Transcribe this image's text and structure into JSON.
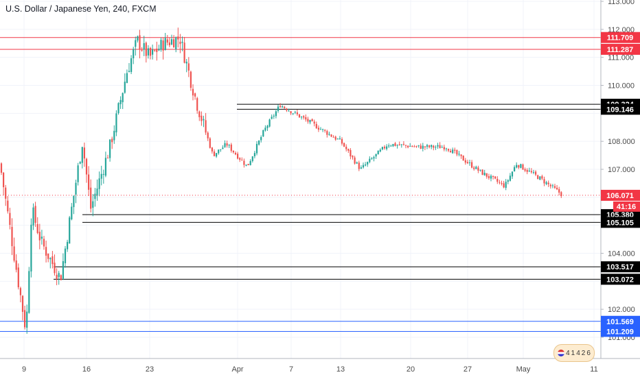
{
  "header": {
    "title": "U.S. Dollar / Japanese Yen, 240, FXCM"
  },
  "logo_badge": {
    "digits": [
      "4",
      "1",
      "4",
      "2",
      "6"
    ],
    "icon": "economic-calendar-icon"
  },
  "colors": {
    "up": "#26a69a",
    "down": "#ef5350",
    "red_line": "#f23645",
    "blue_line": "#2962ff",
    "black_line": "#000000",
    "grid": "#f0f3fa",
    "axis_text": "#4a4a4a",
    "price_tag": "#f23645",
    "countdown_tag": "#f23645"
  },
  "chart_data": {
    "type": "candlestick",
    "title": "U.S. Dollar / Japanese Yen, 240, FXCM",
    "ylim": [
      100.8,
      113.0
    ],
    "y_ticks": [
      "113.000",
      "112.000",
      "111.000",
      "110.000",
      "108.000",
      "107.000",
      "104.000",
      "102.000",
      "101.000"
    ],
    "x_ticks": [
      "9",
      "16",
      "23",
      "Apr",
      "7",
      "13",
      "20",
      "27",
      "May",
      "11"
    ],
    "horizontal_levels": [
      {
        "price": "111.709",
        "color": "red",
        "style": "full"
      },
      {
        "price": "111.287",
        "color": "red",
        "style": "full"
      },
      {
        "price": "109.324",
        "color": "black",
        "style": "from-apr"
      },
      {
        "price": "109.146",
        "color": "black",
        "style": "from-apr"
      },
      {
        "price": "105.380",
        "color": "black",
        "style": "from-mid-mar"
      },
      {
        "price": "105.105",
        "color": "black",
        "style": "from-mid-mar"
      },
      {
        "price": "103.517",
        "color": "black",
        "style": "from-early-mar"
      },
      {
        "price": "103.072",
        "color": "black",
        "style": "from-early-mar"
      },
      {
        "price": "101.569",
        "color": "blue",
        "style": "full"
      },
      {
        "price": "101.209",
        "color": "blue",
        "style": "full"
      }
    ],
    "last_price": "106.071",
    "countdown": "41:16",
    "price_path": [
      [
        "start",
        107.2
      ],
      [
        "Mar 6",
        105.3
      ],
      [
        "Mar 9",
        101.2
      ],
      [
        "Mar 10",
        105.6
      ],
      [
        "Mar 11",
        104.4
      ],
      [
        "Mar 12",
        103.1
      ],
      [
        "Mar 13",
        108.0
      ],
      [
        "Mar 16",
        105.6
      ],
      [
        "Mar 18",
        107.8
      ],
      [
        "Mar 20",
        110.5
      ],
      [
        "Mar 21",
        111.6
      ],
      [
        "Mar 23",
        111.0
      ],
      [
        "Mar 24",
        111.5
      ],
      [
        "Mar 25",
        111.7
      ],
      [
        "Mar 26",
        109.5
      ],
      [
        "Mar 27",
        107.5
      ],
      [
        "Mar 30",
        107.9
      ],
      [
        "Apr 1",
        107.1
      ],
      [
        "Apr 3",
        108.4
      ],
      [
        "Apr 6",
        109.3
      ],
      [
        "Apr 9",
        108.7
      ],
      [
        "Apr 13",
        108.0
      ],
      [
        "Apr 15",
        107.0
      ],
      [
        "Apr 17",
        107.9
      ],
      [
        "Apr 21",
        107.8
      ],
      [
        "Apr 24",
        107.8
      ],
      [
        "Apr 28",
        106.9
      ],
      [
        "Apr 30",
        106.4
      ],
      [
        "May 1",
        107.2
      ],
      [
        "May 4",
        106.7
      ],
      [
        "May 6",
        106.07
      ]
    ]
  }
}
